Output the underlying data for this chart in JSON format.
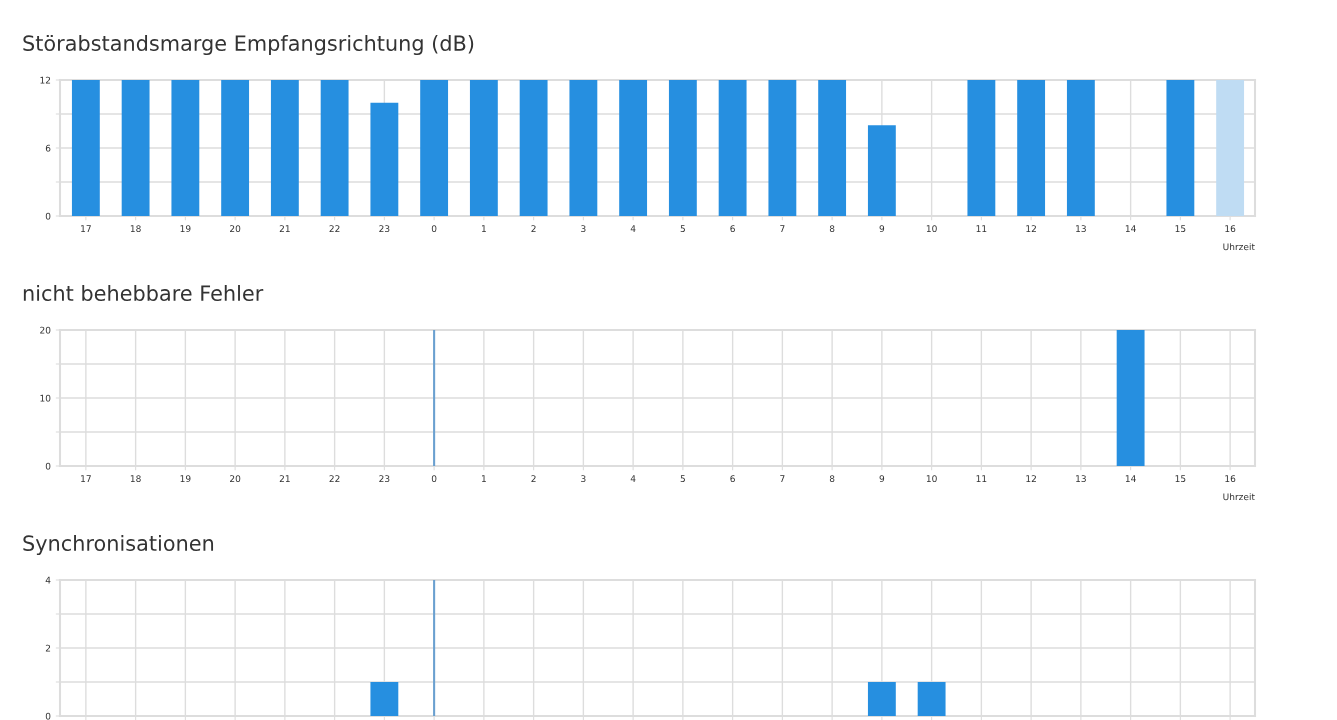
{
  "chart_data": [
    {
      "type": "bar",
      "title": "Störabstandsmarge Empfangsrichtung (dB)",
      "xlabel": "Uhrzeit",
      "categories": [
        "17",
        "18",
        "19",
        "20",
        "21",
        "22",
        "23",
        "0",
        "1",
        "2",
        "3",
        "4",
        "5",
        "6",
        "7",
        "8",
        "9",
        "10",
        "11",
        "12",
        "13",
        "14",
        "15",
        "16"
      ],
      "values": [
        12,
        12,
        12,
        12,
        12,
        12,
        10,
        12,
        12,
        12,
        12,
        12,
        12,
        12,
        12,
        12,
        8,
        null,
        12,
        12,
        12,
        null,
        12,
        12
      ],
      "colors": [
        "#268fe0",
        "#268fe0",
        "#268fe0",
        "#268fe0",
        "#268fe0",
        "#268fe0",
        "#268fe0",
        "#268fe0",
        "#268fe0",
        "#268fe0",
        "#268fe0",
        "#268fe0",
        "#268fe0",
        "#268fe0",
        "#268fe0",
        "#268fe0",
        "#268fe0",
        "#268fe0",
        "#268fe0",
        "#268fe0",
        "#268fe0",
        "#268fe0",
        "#268fe0",
        "#bfdcf3"
      ],
      "ylim": [
        0,
        12
      ],
      "yticks": [
        0,
        {
          "value": 3,
          "label": null
        },
        6,
        {
          "value": 9,
          "label": null
        },
        12
      ],
      "grid": true,
      "legend": false
    },
    {
      "type": "bar",
      "title": "nicht behebbare Fehler",
      "xlabel": "Uhrzeit",
      "categories": [
        "17",
        "18",
        "19",
        "20",
        "21",
        "22",
        "23",
        "0",
        "1",
        "2",
        "3",
        "4",
        "5",
        "6",
        "7",
        "8",
        "9",
        "10",
        "11",
        "12",
        "13",
        "14",
        "15",
        "16"
      ],
      "values": [
        0,
        0,
        0,
        0,
        0,
        0,
        0,
        0,
        0,
        0,
        0,
        0,
        0,
        0,
        0,
        0,
        0,
        0,
        0,
        0,
        0,
        20,
        0,
        0
      ],
      "color": "#268fe0",
      "ylim": [
        0,
        20
      ],
      "yticks": [
        0,
        {
          "value": 5,
          "label": null
        },
        10,
        {
          "value": 15,
          "label": null
        },
        20
      ],
      "grid": true,
      "legend": false,
      "ref_lines": [
        {
          "axis": "x",
          "value": "0",
          "color": "#6aa0d0"
        }
      ]
    },
    {
      "type": "bar",
      "title": "Synchronisationen",
      "categories": [
        "17",
        "18",
        "19",
        "20",
        "21",
        "22",
        "23",
        "0",
        "1",
        "2",
        "3",
        "4",
        "5",
        "6",
        "7",
        "8",
        "9",
        "10",
        "11",
        "12",
        "13",
        "14",
        "15",
        "16"
      ],
      "values": [
        0,
        0,
        0,
        0,
        0,
        0,
        1,
        0,
        0,
        0,
        0,
        0,
        0,
        0,
        0,
        0,
        1,
        1,
        0,
        0,
        0,
        0,
        0,
        0
      ],
      "color": "#268fe0",
      "ylim": [
        0,
        4
      ],
      "yticks": [
        0,
        {
          "value": 1,
          "label": null
        },
        2,
        {
          "value": 3,
          "label": null
        },
        4
      ],
      "grid": true,
      "legend": false,
      "tick_labels": "y",
      "ref_lines": [
        {
          "axis": "x",
          "value": "0",
          "color": "#6aa0d0"
        }
      ]
    }
  ]
}
